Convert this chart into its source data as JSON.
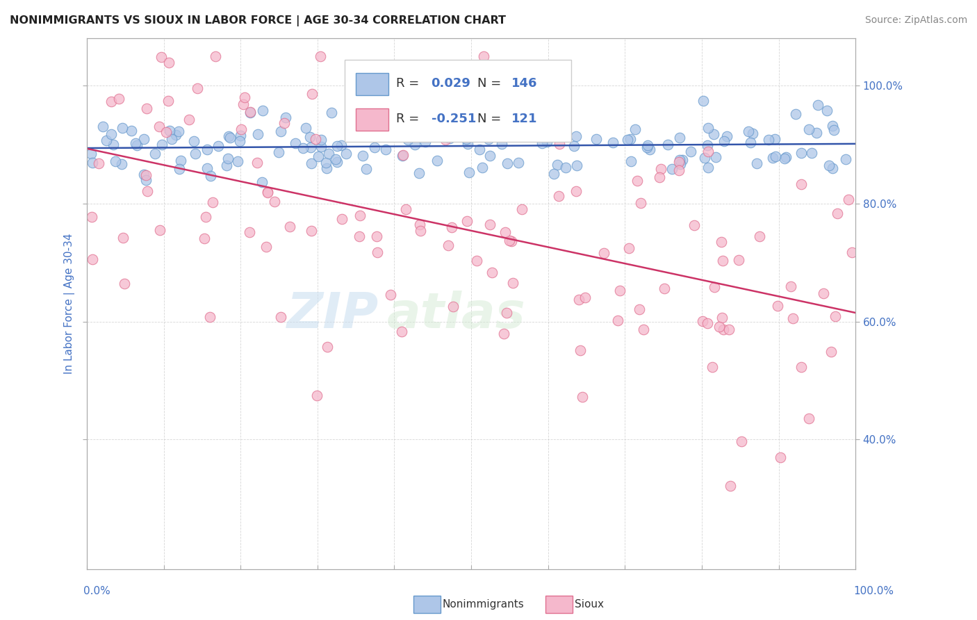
{
  "title": "NONIMMIGRANTS VS SIOUX IN LABOR FORCE | AGE 30-34 CORRELATION CHART",
  "source": "Source: ZipAtlas.com",
  "ylabel": "In Labor Force | Age 30-34",
  "legend_nonimm_label": "Nonimmigrants",
  "legend_sioux_label": "Sioux",
  "r_nonimm": 0.029,
  "n_nonimm": 146,
  "r_sioux": -0.251,
  "n_sioux": 121,
  "nonimm_face_color": "#aec6e8",
  "nonimm_edge_color": "#6699cc",
  "sioux_face_color": "#f5b8cc",
  "sioux_edge_color": "#e07090",
  "nonimm_line_color": "#3355aa",
  "sioux_line_color": "#cc3366",
  "text_blue": "#4472c4",
  "background_color": "#ffffff",
  "watermark_zip": "ZIP",
  "watermark_atlas": "atlas",
  "ylim_min": 0.18,
  "ylim_max": 1.08,
  "xlim_min": 0.0,
  "xlim_max": 1.0,
  "ytick_vals": [
    0.4,
    0.6,
    0.8,
    1.0
  ],
  "ytick_labels": [
    "40.0%",
    "60.0%",
    "80.0%",
    "100.0%"
  ],
  "xtick_left_label": "0.0%",
  "xtick_right_label": "100.0%",
  "seed_nonimm": 42,
  "seed_sioux": 99
}
